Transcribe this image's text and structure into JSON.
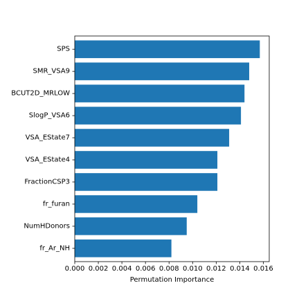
{
  "chart_data": {
    "type": "bar",
    "orientation": "horizontal",
    "categories": [
      "SPS",
      "SMR_VSA9",
      "BCUT2D_MRLOW",
      "SlogP_VSA6",
      "VSA_EState7",
      "VSA_EState4",
      "FractionCSP3",
      "fr_furan",
      "NumHDonors",
      "fr_Ar_NH"
    ],
    "values": [
      0.0157,
      0.0148,
      0.0144,
      0.0141,
      0.0131,
      0.0121,
      0.0121,
      0.0104,
      0.0095,
      0.0082
    ],
    "title": "",
    "xlabel": "Permutation Importance",
    "ylabel": "",
    "xlim": [
      0.0,
      0.0165
    ],
    "x_ticks": [
      "0.000",
      "0.002",
      "0.004",
      "0.006",
      "0.008",
      "0.010",
      "0.012",
      "0.014",
      "0.016"
    ],
    "x_tick_values": [
      0.0,
      0.002,
      0.004,
      0.006,
      0.008,
      0.01,
      0.012,
      0.014,
      0.016
    ],
    "grid": false,
    "bar_color": "#1f77b4"
  }
}
